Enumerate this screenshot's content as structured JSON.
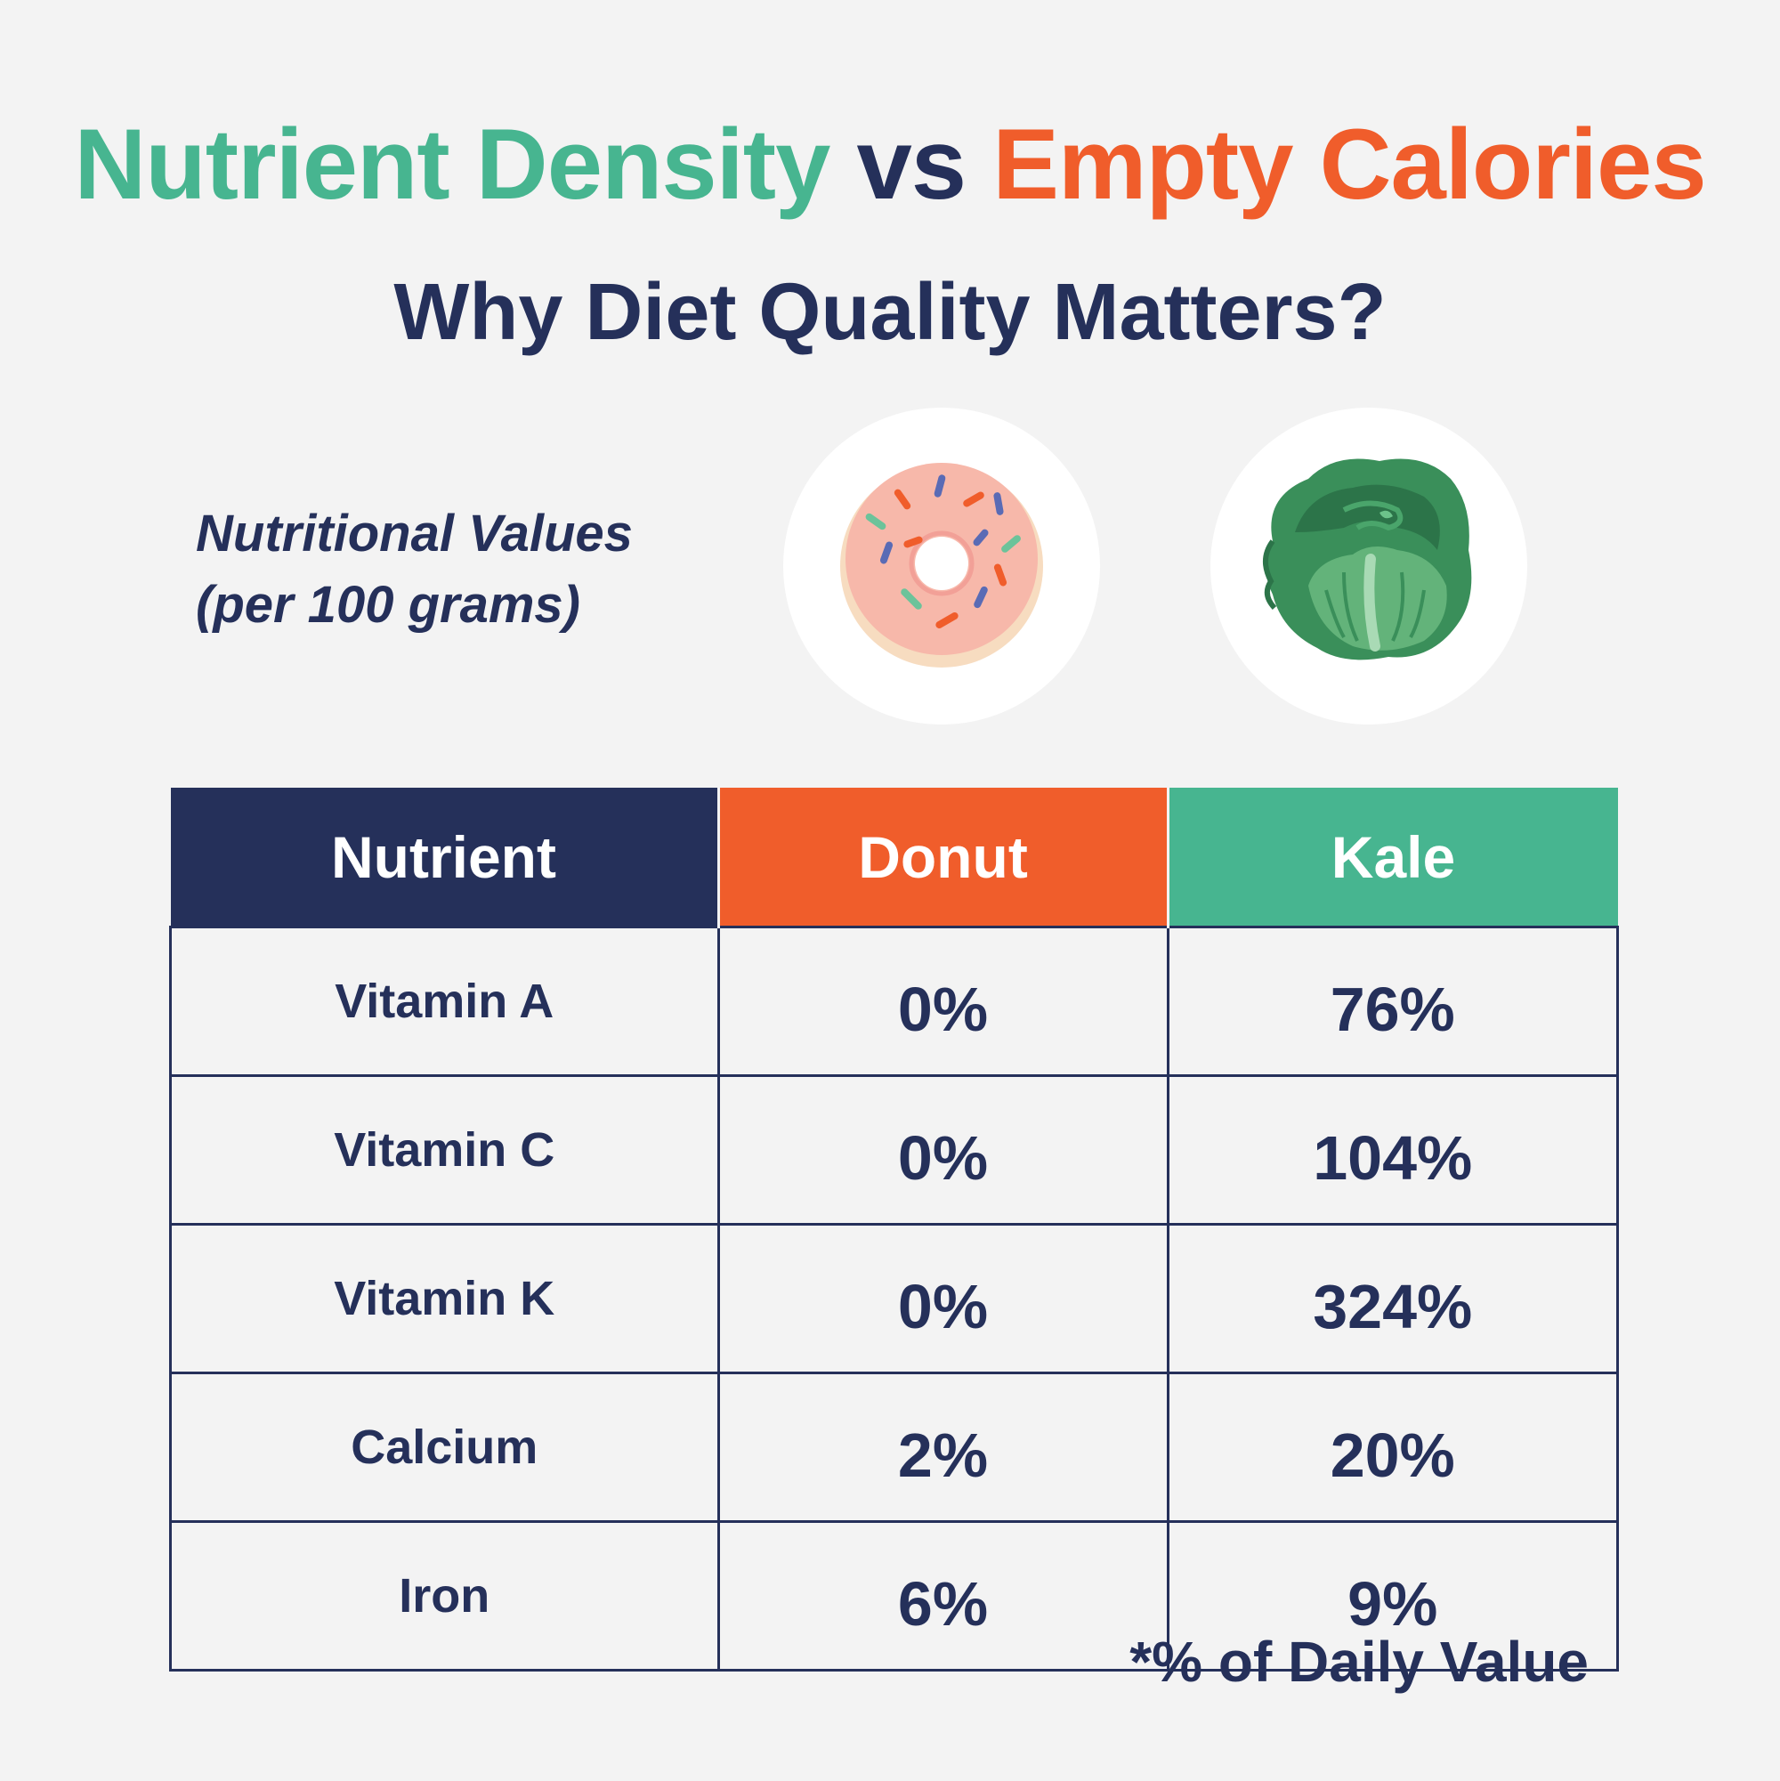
{
  "header": {
    "title_part1": "Nutrient Density",
    "title_part2": "vs",
    "title_part3": "Empty Calories",
    "subtitle": "Why Diet Quality Matters?"
  },
  "label": {
    "line1": "Nutritional Values",
    "line2": "(per 100 grams)"
  },
  "icons": {
    "donut": "donut-icon",
    "kale": "kale-icon"
  },
  "colors": {
    "navy": "#25305a",
    "green": "#47b590",
    "orange": "#f05d2b",
    "background": "#f3f3f3"
  },
  "table": {
    "headers": [
      "Nutrient",
      "Donut",
      "Kale"
    ],
    "rows": [
      {
        "nutrient": "Vitamin A",
        "donut": "0%",
        "kale": "76%"
      },
      {
        "nutrient": "Vitamin C",
        "donut": "0%",
        "kale": "104%"
      },
      {
        "nutrient": "Vitamin K",
        "donut": "0%",
        "kale": "324%"
      },
      {
        "nutrient": "Calcium",
        "donut": "2%",
        "kale": "20%"
      },
      {
        "nutrient": "Iron",
        "donut": "6%",
        "kale": "9%"
      }
    ]
  },
  "footnote": "*% of Daily Value"
}
